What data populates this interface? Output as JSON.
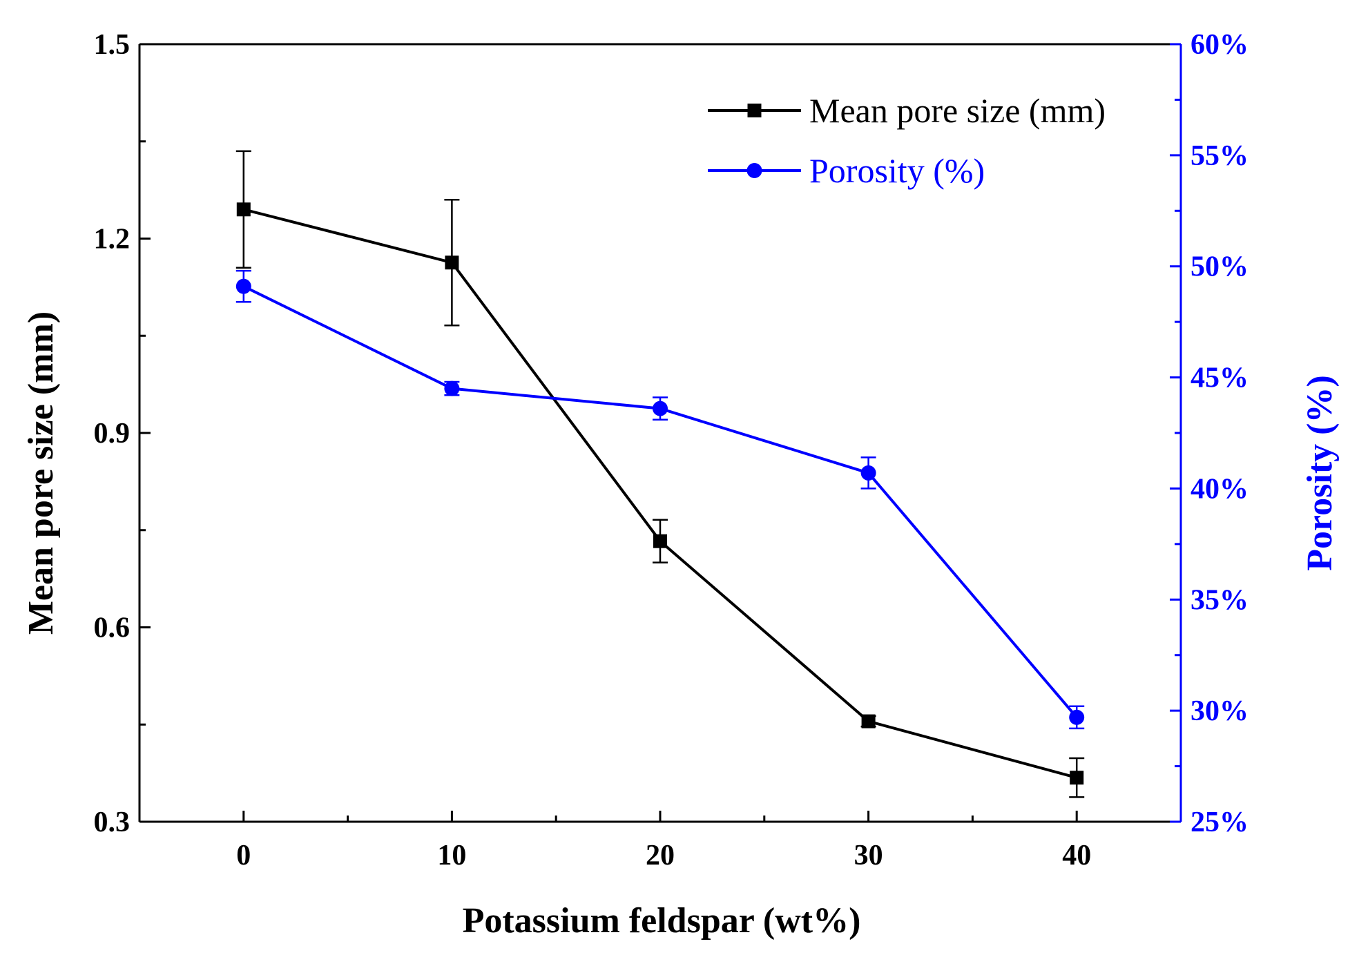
{
  "chart_data": {
    "type": "line",
    "xlabel": "Potassium feldspar (wt%)",
    "ylabel_left": "Mean pore size (mm)",
    "ylabel_right": "Porosity (%)",
    "x": [
      0,
      10,
      20,
      30,
      40
    ],
    "xlim": [
      -5,
      45
    ],
    "x_ticks": [
      0,
      10,
      20,
      30,
      40
    ],
    "x_tick_labels": [
      "0",
      "10",
      "20",
      "30",
      "40"
    ],
    "ylim_left": [
      0.3,
      1.5
    ],
    "y_ticks_left": [
      0.3,
      0.6,
      0.9,
      1.2,
      1.5
    ],
    "y_tick_labels_left": [
      "0.3",
      "0.6",
      "0.9",
      "1.2",
      "1.5"
    ],
    "ylim_right": [
      25,
      60
    ],
    "y_ticks_right": [
      25,
      30,
      35,
      40,
      45,
      50,
      55,
      60
    ],
    "y_tick_labels_right": [
      "25%",
      "30%",
      "35%",
      "40%",
      "45%",
      "50%",
      "55%",
      "60%"
    ],
    "legend_position": "top-right",
    "grid": false,
    "series": [
      {
        "name": "Mean pore size (mm)",
        "axis": "left",
        "color": "#000000",
        "marker": "square",
        "values": [
          1.245,
          1.163,
          0.733,
          0.455,
          0.368
        ],
        "errors": [
          0.09,
          0.097,
          0.033,
          0.008,
          0.03
        ]
      },
      {
        "name": "Porosity (%)",
        "axis": "right",
        "color": "#0000ff",
        "marker": "circle",
        "values": [
          49.1,
          44.5,
          43.6,
          40.7,
          29.7
        ],
        "errors": [
          0.7,
          0.3,
          0.5,
          0.7,
          0.5
        ]
      }
    ]
  }
}
